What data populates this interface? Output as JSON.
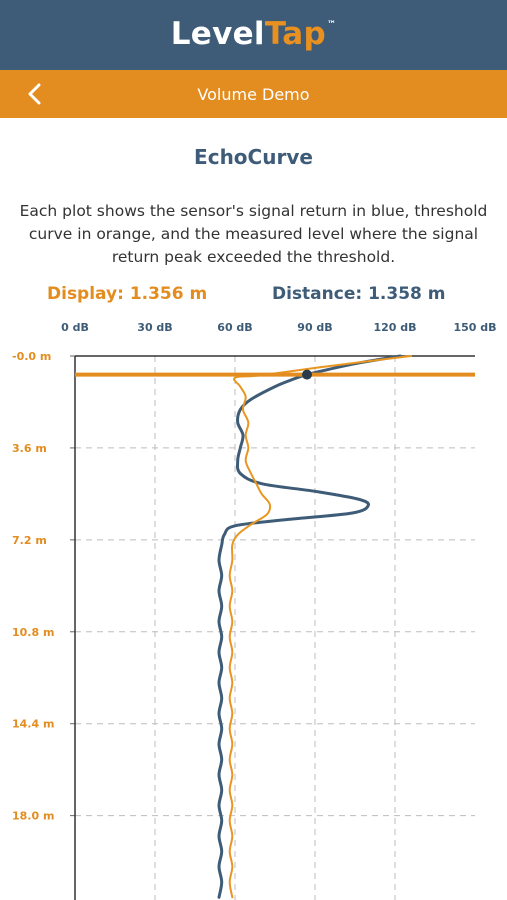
{
  "app": {
    "brand_part1": "Level",
    "brand_part2": "Tap",
    "brand_tm": "™",
    "nav_title": "Volume Demo",
    "back_icon": "chevron-left-icon"
  },
  "page": {
    "title": "EchoCurve",
    "description": "Each plot shows the sensor's signal return in blue, threshold curve in orange, and the measured level where the signal return peak exceeded the threshold.",
    "display_label": "Display:",
    "display_value": "1.356 m",
    "distance_label": "Distance:",
    "distance_value": "1.358 m"
  },
  "colors": {
    "header_blue": "#3e5c78",
    "accent_orange": "#e38c1f",
    "signal_blue": "#3e5c78",
    "threshold_orange": "#e8961f"
  },
  "chart_data": {
    "type": "line",
    "orientation": "vertical-depth",
    "x_axis": {
      "label": "",
      "unit": "dB",
      "range": [
        0,
        150
      ],
      "ticks": [
        "0 dB",
        "30 dB",
        "60 dB",
        "90 dB",
        "120 dB",
        "150 dB"
      ],
      "position": "top"
    },
    "y_axis": {
      "label": "",
      "unit": "m",
      "range": [
        0,
        21.5
      ],
      "ticks": [
        "-0.0 m",
        "3.6 m",
        "7.2 m",
        "10.8 m",
        "14.4 m",
        "18.0 m"
      ],
      "tick_values": [
        0,
        3.6,
        7.2,
        10.8,
        14.4,
        18.0
      ],
      "inverted": true
    },
    "grid": true,
    "measured_level": 0.73,
    "peak_marker": {
      "db": 87,
      "depth": 0.73
    },
    "series": [
      {
        "color": "#3e5c78",
        "role": "signal",
        "points": [
          [
            122,
            0
          ],
          [
            105,
            0.3
          ],
          [
            92,
            0.6
          ],
          [
            87,
            0.73
          ],
          [
            82,
            0.9
          ],
          [
            75,
            1.2
          ],
          [
            66,
            1.7
          ],
          [
            62,
            2.1
          ],
          [
            61,
            2.6
          ],
          [
            63,
            3.1
          ],
          [
            62,
            3.6
          ],
          [
            61,
            4.1
          ],
          [
            62,
            4.6
          ],
          [
            70,
            5.0
          ],
          [
            90,
            5.3
          ],
          [
            106,
            5.6
          ],
          [
            110,
            5.85
          ],
          [
            104,
            6.15
          ],
          [
            80,
            6.4
          ],
          [
            60,
            6.65
          ],
          [
            56,
            7.0
          ],
          [
            55,
            7.4
          ],
          [
            54,
            8.0
          ],
          [
            55,
            8.6
          ],
          [
            54,
            9.2
          ],
          [
            55,
            9.8
          ],
          [
            54,
            10.4
          ],
          [
            55,
            11.0
          ],
          [
            54,
            11.6
          ],
          [
            55,
            12.2
          ],
          [
            54,
            12.8
          ],
          [
            55,
            13.4
          ],
          [
            54,
            14.0
          ],
          [
            55,
            14.6
          ],
          [
            54,
            15.2
          ],
          [
            55,
            15.8
          ],
          [
            54,
            16.4
          ],
          [
            55,
            17.0
          ],
          [
            54,
            17.6
          ],
          [
            55,
            18.2
          ],
          [
            54,
            18.8
          ],
          [
            55,
            19.4
          ],
          [
            54,
            20.0
          ],
          [
            55,
            20.6
          ],
          [
            54,
            21.2
          ]
        ]
      },
      {
        "color": "#e8961f",
        "role": "threshold",
        "points": [
          [
            126,
            0
          ],
          [
            95,
            0.4
          ],
          [
            70,
            0.75
          ],
          [
            60,
            0.85
          ],
          [
            62,
            1.2
          ],
          [
            64,
            1.6
          ],
          [
            63,
            2.1
          ],
          [
            65,
            2.6
          ],
          [
            64,
            3.1
          ],
          [
            65,
            3.6
          ],
          [
            64,
            4.1
          ],
          [
            66,
            4.6
          ],
          [
            68,
            5.0
          ],
          [
            70,
            5.4
          ],
          [
            73,
            5.8
          ],
          [
            72,
            6.2
          ],
          [
            66,
            6.6
          ],
          [
            61,
            7.0
          ],
          [
            59,
            7.4
          ],
          [
            59,
            8.0
          ],
          [
            58,
            8.6
          ],
          [
            59,
            9.2
          ],
          [
            58,
            9.8
          ],
          [
            59,
            10.4
          ],
          [
            58,
            11.0
          ],
          [
            59,
            11.6
          ],
          [
            58,
            12.2
          ],
          [
            59,
            12.8
          ],
          [
            58,
            13.4
          ],
          [
            59,
            14.0
          ],
          [
            58,
            14.6
          ],
          [
            59,
            15.2
          ],
          [
            58,
            15.8
          ],
          [
            59,
            16.4
          ],
          [
            58,
            17.0
          ],
          [
            59,
            17.6
          ],
          [
            58,
            18.2
          ],
          [
            59,
            18.8
          ],
          [
            58,
            19.4
          ],
          [
            59,
            20.0
          ],
          [
            58,
            20.6
          ],
          [
            59,
            21.2
          ]
        ]
      }
    ]
  }
}
